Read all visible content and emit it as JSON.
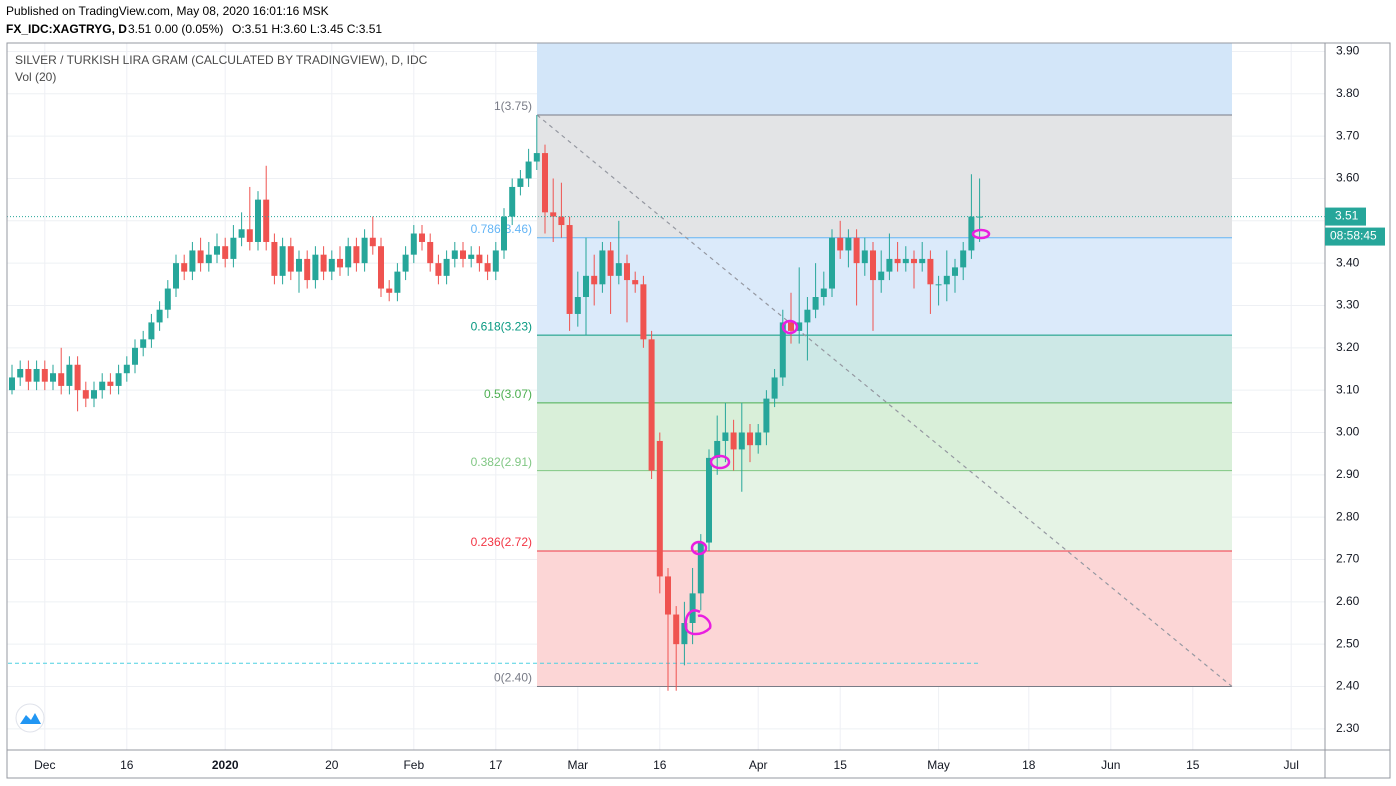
{
  "header": {
    "published": "Published on TradingView.com, May 08, 2020 16:01:16 MSK",
    "symbol": "FX_IDC:XAGTRYG, D",
    "quote": "3.51 0.00 (0.05%)",
    "ohlc": "O:3.51 H:3.60 L:3.45 C:3.51"
  },
  "chart_data": {
    "type": "candlestick",
    "title": "SILVER / TURKISH LIRA GRAM (CALCULATED BY TRADINGVIEW), D, IDC",
    "subtitle": "Vol (20)",
    "up_color": "#26a69a",
    "down_color": "#ef5350",
    "categories": [
      null,
      null,
      null,
      null,
      "Dec",
      null,
      null,
      null,
      null,
      null,
      null,
      null,
      null,
      null,
      "16",
      null,
      null,
      null,
      null,
      null,
      null,
      null,
      null,
      null,
      null,
      null,
      "2020",
      null,
      null,
      null,
      null,
      null,
      null,
      null,
      null,
      null,
      null,
      null,
      null,
      "20",
      null,
      null,
      null,
      null,
      null,
      null,
      null,
      null,
      null,
      "Feb",
      null,
      null,
      null,
      null,
      null,
      null,
      null,
      null,
      null,
      "17",
      null,
      null,
      null,
      null,
      null,
      null,
      null,
      null,
      null,
      "Mar",
      null,
      null,
      null,
      null,
      null,
      null,
      null,
      null,
      null,
      "16",
      null,
      null,
      null,
      null,
      null,
      null,
      null,
      null,
      null,
      null,
      null,
      "Apr",
      null,
      null,
      null,
      null,
      null,
      null,
      null,
      null,
      null,
      "15",
      null,
      null,
      null,
      null,
      null,
      null,
      null,
      null,
      null,
      null,
      null,
      "May",
      null,
      null,
      null,
      null,
      null,
      null,
      null,
      null,
      null,
      null,
      "18",
      null,
      null,
      null,
      null,
      null,
      null,
      null,
      null,
      null,
      "Jun",
      null,
      null,
      null,
      null,
      null,
      null,
      null,
      null,
      null,
      "15",
      null,
      null,
      null,
      null,
      null,
      null,
      null,
      null,
      null,
      null,
      null,
      "Jul",
      null,
      null,
      null
    ],
    "open": [
      3.1,
      3.13,
      3.15,
      3.12,
      3.15,
      3.12,
      3.14,
      3.11,
      3.16,
      3.1,
      3.08,
      3.1,
      3.12,
      3.11,
      3.14,
      3.16,
      3.2,
      3.22,
      3.26,
      3.29,
      3.34,
      3.4,
      3.38,
      3.43,
      3.4,
      3.42,
      3.44,
      3.41,
      3.46,
      3.48,
      3.45,
      3.55,
      3.45,
      3.37,
      3.44,
      3.38,
      3.41,
      3.36,
      3.42,
      3.38,
      3.41,
      3.39,
      3.44,
      3.4,
      3.46,
      3.44,
      3.34,
      3.33,
      3.38,
      3.42,
      3.47,
      3.45,
      3.4,
      3.37,
      3.41,
      3.43,
      3.41,
      3.42,
      3.4,
      3.38,
      3.43,
      3.51,
      3.58,
      3.6,
      3.64,
      3.66,
      3.52,
      3.51,
      3.49,
      3.28,
      3.32,
      3.37,
      3.35,
      3.43,
      3.37,
      3.4,
      3.36,
      3.35,
      3.22,
      2.98,
      2.66,
      2.57,
      2.5,
      2.55,
      2.62,
      2.74,
      2.94,
      2.98,
      3.0,
      2.96,
      3.0,
      2.97,
      3.0,
      3.08,
      3.13,
      3.26,
      3.24,
      3.26,
      3.29,
      3.32,
      3.34,
      3.46,
      3.43,
      3.46,
      3.4,
      3.43,
      3.36,
      3.38,
      3.41,
      3.4,
      3.41,
      3.4,
      3.41,
      3.35,
      3.35,
      3.37,
      3.39,
      3.43,
      3.51,
      null,
      null,
      null,
      null,
      null,
      null,
      null,
      null,
      null,
      null,
      null,
      null,
      null,
      null,
      null,
      null,
      null,
      null,
      null,
      null,
      null,
      null,
      null,
      null,
      null,
      null,
      null,
      null,
      null,
      null,
      null,
      null,
      null,
      null,
      null,
      null,
      null,
      null,
      null,
      null,
      null
    ],
    "high": [
      3.16,
      3.17,
      3.17,
      3.17,
      3.17,
      3.16,
      3.2,
      3.18,
      3.18,
      3.12,
      3.12,
      3.14,
      3.14,
      3.16,
      3.18,
      3.22,
      3.24,
      3.28,
      3.31,
      3.36,
      3.42,
      3.42,
      3.45,
      3.46,
      3.45,
      3.47,
      3.46,
      3.49,
      3.52,
      3.58,
      3.57,
      3.63,
      3.47,
      3.46,
      3.46,
      3.43,
      3.43,
      3.44,
      3.44,
      3.43,
      3.44,
      3.46,
      3.46,
      3.48,
      3.51,
      3.46,
      3.36,
      3.4,
      3.44,
      3.49,
      3.49,
      3.47,
      3.42,
      3.43,
      3.45,
      3.45,
      3.44,
      3.44,
      3.42,
      3.45,
      3.53,
      3.6,
      3.62,
      3.67,
      3.75,
      3.68,
      3.6,
      3.59,
      3.51,
      3.38,
      3.46,
      3.42,
      3.45,
      3.45,
      3.5,
      3.42,
      3.38,
      3.37,
      3.24,
      3.0,
      2.68,
      2.59,
      2.6,
      2.68,
      2.76,
      2.96,
      3.04,
      3.07,
      3.03,
      3.07,
      3.02,
      3.02,
      3.1,
      3.15,
      3.29,
      3.33,
      3.39,
      3.32,
      3.4,
      3.38,
      3.48,
      3.5,
      3.48,
      3.48,
      3.46,
      3.45,
      3.43,
      3.47,
      3.45,
      3.44,
      3.43,
      3.45,
      3.43,
      3.37,
      3.43,
      3.41,
      3.45,
      3.61,
      3.6,
      null,
      null,
      null,
      null,
      null,
      null,
      null,
      null,
      null,
      null,
      null,
      null,
      null,
      null,
      null,
      null,
      null,
      null,
      null,
      null,
      null,
      null,
      null,
      null,
      null,
      null,
      null,
      null,
      null,
      null,
      null,
      null,
      null,
      null,
      null,
      null,
      null,
      null,
      null,
      null,
      null
    ],
    "low": [
      3.09,
      3.11,
      3.1,
      3.1,
      3.1,
      3.1,
      3.09,
      3.09,
      3.05,
      3.06,
      3.06,
      3.08,
      3.09,
      3.09,
      3.12,
      3.14,
      3.18,
      3.2,
      3.24,
      3.27,
      3.32,
      3.36,
      3.36,
      3.38,
      3.38,
      3.4,
      3.39,
      3.39,
      3.44,
      3.43,
      3.43,
      3.43,
      3.35,
      3.35,
      3.36,
      3.33,
      3.34,
      3.34,
      3.36,
      3.36,
      3.37,
      3.37,
      3.38,
      3.38,
      3.42,
      3.32,
      3.31,
      3.31,
      3.36,
      3.4,
      3.43,
      3.38,
      3.35,
      3.35,
      3.39,
      3.39,
      3.39,
      3.38,
      3.36,
      3.36,
      3.41,
      3.49,
      3.56,
      3.58,
      3.62,
      3.47,
      3.45,
      3.46,
      3.24,
      3.25,
      3.23,
      3.3,
      3.33,
      3.28,
      3.35,
      3.26,
      3.33,
      3.2,
      2.89,
      2.62,
      2.39,
      2.39,
      2.45,
      2.5,
      2.58,
      2.72,
      2.9,
      2.93,
      2.91,
      2.86,
      2.93,
      2.95,
      2.97,
      3.06,
      3.11,
      3.21,
      3.21,
      3.17,
      3.27,
      3.3,
      3.32,
      3.41,
      3.39,
      3.3,
      3.37,
      3.24,
      3.33,
      3.36,
      3.38,
      3.38,
      3.34,
      3.38,
      3.28,
      3.3,
      3.31,
      3.33,
      3.36,
      3.41,
      3.45,
      null,
      null,
      null,
      null,
      null,
      null,
      null,
      null,
      null,
      null,
      null,
      null,
      null,
      null,
      null,
      null,
      null,
      null,
      null,
      null,
      null,
      null,
      null,
      null,
      null,
      null,
      null,
      null,
      null,
      null,
      null,
      null,
      null,
      null,
      null,
      null,
      null,
      null,
      null,
      null,
      null
    ],
    "close": [
      3.13,
      3.15,
      3.12,
      3.15,
      3.12,
      3.14,
      3.11,
      3.16,
      3.1,
      3.08,
      3.1,
      3.12,
      3.11,
      3.14,
      3.16,
      3.2,
      3.22,
      3.26,
      3.29,
      3.34,
      3.4,
      3.38,
      3.43,
      3.4,
      3.42,
      3.44,
      3.41,
      3.46,
      3.48,
      3.45,
      3.55,
      3.45,
      3.37,
      3.44,
      3.38,
      3.41,
      3.36,
      3.42,
      3.38,
      3.41,
      3.39,
      3.44,
      3.4,
      3.46,
      3.44,
      3.34,
      3.33,
      3.38,
      3.42,
      3.47,
      3.45,
      3.4,
      3.37,
      3.41,
      3.43,
      3.41,
      3.42,
      3.4,
      3.38,
      3.43,
      3.51,
      3.58,
      3.6,
      3.64,
      3.66,
      3.52,
      3.51,
      3.49,
      3.28,
      3.32,
      3.37,
      3.35,
      3.43,
      3.37,
      3.4,
      3.36,
      3.35,
      3.22,
      2.91,
      2.66,
      2.57,
      2.5,
      2.55,
      2.62,
      2.74,
      2.94,
      2.98,
      3.0,
      2.96,
      3.0,
      2.97,
      3.0,
      3.08,
      3.13,
      3.26,
      3.24,
      3.26,
      3.29,
      3.32,
      3.34,
      3.46,
      3.43,
      3.46,
      3.4,
      3.43,
      3.36,
      3.38,
      3.41,
      3.4,
      3.41,
      3.4,
      3.41,
      3.35,
      3.35,
      3.37,
      3.39,
      3.43,
      3.51,
      3.51,
      null,
      null,
      null,
      null,
      null,
      null,
      null,
      null,
      null,
      null,
      null,
      null,
      null,
      null,
      null,
      null,
      null,
      null,
      null,
      null,
      null,
      null,
      null,
      null,
      null,
      null,
      null,
      null,
      null,
      null,
      null,
      null,
      null,
      null,
      null,
      null,
      null,
      null,
      null,
      null,
      null
    ],
    "ylim": [
      2.25,
      3.92
    ],
    "yticks": [
      {
        "value": 2.3,
        "label": "2.30"
      },
      {
        "value": 2.4,
        "label": "2.40"
      },
      {
        "value": 2.5,
        "label": "2.50"
      },
      {
        "value": 2.6,
        "label": "2.60"
      },
      {
        "value": 2.7,
        "label": "2.70"
      },
      {
        "value": 2.8,
        "label": "2.80"
      },
      {
        "value": 2.9,
        "label": "2.90"
      },
      {
        "value": 3.0,
        "label": "3.00"
      },
      {
        "value": 3.1,
        "label": "3.10"
      },
      {
        "value": 3.2,
        "label": "3.20"
      },
      {
        "value": 3.3,
        "label": "3.30"
      },
      {
        "value": 3.4,
        "label": "3.40"
      },
      {
        "value": 3.5,
        "label": "3.50"
      },
      {
        "value": 3.6,
        "label": "3.60"
      },
      {
        "value": 3.7,
        "label": "3.70"
      },
      {
        "value": 3.8,
        "label": "3.80"
      },
      {
        "value": 3.9,
        "label": "3.90"
      }
    ],
    "grid": true,
    "last_price": 3.51,
    "last_price_color": "#26a69a",
    "countdown": "08:58:45",
    "horizontal_line": 2.455,
    "horizontal_line_color": "#4dd0e1",
    "fib": {
      "top_fill": "#d3e6f9",
      "trend_color": "#9598a1",
      "levels": [
        {
          "value": 3.75,
          "label": "1(3.75)",
          "color": "#787b86",
          "fill": "#e3e4e6"
        },
        {
          "value": 3.46,
          "label": "0.786(3.46)",
          "color": "#64b5f6",
          "fill": "#dbeafa"
        },
        {
          "value": 3.23,
          "label": "0.618(3.23)",
          "color": "#089981",
          "fill": "#cde8e6"
        },
        {
          "value": 3.07,
          "label": "0.5(3.07)",
          "color": "#4caf50",
          "fill": "#d9efd9"
        },
        {
          "value": 2.91,
          "label": "0.382(2.91)",
          "color": "#81c784",
          "fill": "#e5f3e5"
        },
        {
          "value": 2.72,
          "label": "0.236(2.72)",
          "color": "#f23645",
          "fill": "#fcd6d6"
        },
        {
          "value": 2.4,
          "label": "0(2.40)",
          "color": "#787b86"
        }
      ]
    }
  }
}
